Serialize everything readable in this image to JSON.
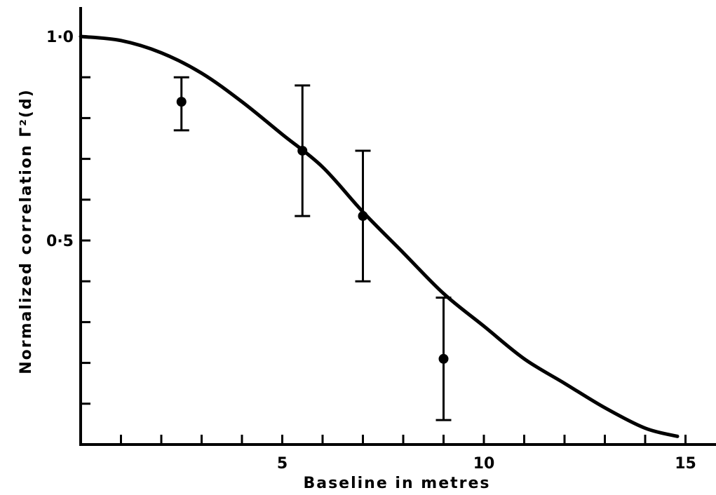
{
  "chart_data": {
    "type": "scatter",
    "title": "",
    "xlabel": "Baseline in metres",
    "ylabel": "Normalized correlation Γ²(d)",
    "xlim": [
      0,
      16
    ],
    "ylim": [
      0,
      1.05
    ],
    "x_ticks": [
      1,
      2,
      3,
      4,
      5,
      6,
      7,
      8,
      9,
      10,
      11,
      12,
      13,
      14,
      15
    ],
    "x_tick_labels": [
      {
        "value": 5,
        "label": "5"
      },
      {
        "value": 10,
        "label": "10"
      },
      {
        "value": 15,
        "label": "15"
      }
    ],
    "y_ticks": [
      0.1,
      0.2,
      0.3,
      0.4,
      0.5,
      0.6,
      0.7,
      0.8,
      0.9,
      1.0
    ],
    "y_tick_labels": [
      {
        "value": 0.5,
        "label": "0·5"
      },
      {
        "value": 1.0,
        "label": "1·0"
      }
    ],
    "grid": false,
    "legend": "none",
    "series": [
      {
        "kind": "line",
        "x": [
          0,
          1,
          2,
          3,
          4,
          5,
          6,
          7,
          8,
          9,
          10,
          11,
          12,
          13,
          14,
          14.8
        ],
        "y": [
          1.0,
          0.99,
          0.96,
          0.91,
          0.84,
          0.76,
          0.68,
          0.57,
          0.47,
          0.37,
          0.29,
          0.21,
          0.15,
          0.09,
          0.04,
          0.02
        ]
      },
      {
        "kind": "scatter",
        "x": [
          2.5,
          5.5,
          7.0,
          9.0
        ],
        "y": [
          0.84,
          0.72,
          0.56,
          0.21
        ],
        "yerr_low": [
          0.77,
          0.56,
          0.4,
          0.06
        ],
        "yerr_high": [
          0.9,
          0.88,
          0.72,
          0.36
        ]
      }
    ]
  }
}
